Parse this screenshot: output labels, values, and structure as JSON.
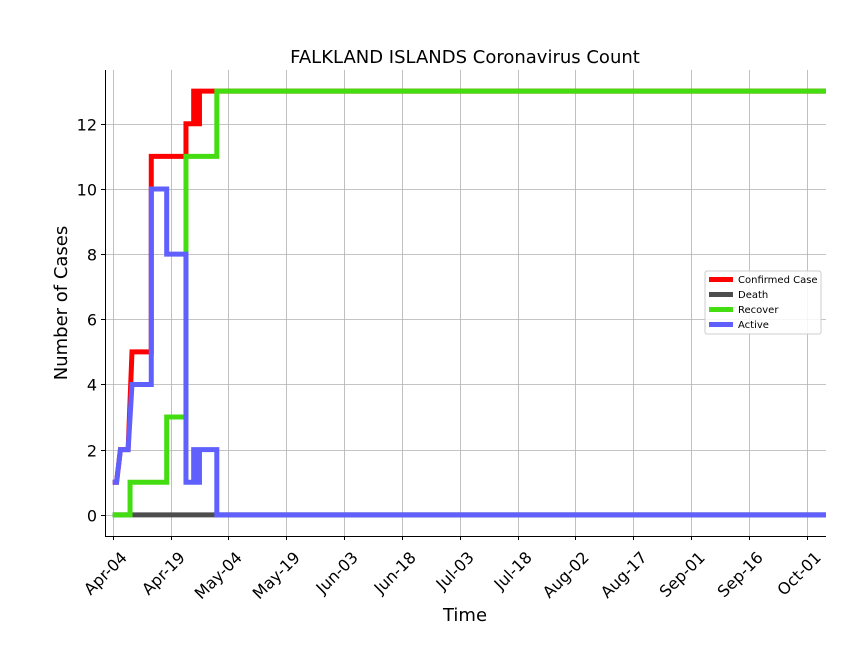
{
  "chart_data": {
    "type": "line",
    "title": "FALKLAND ISLANDS Coronavirus Count",
    "xlabel": "Time",
    "ylabel": "Number of Cases",
    "x_start": "2020-04-04",
    "x_end": "2020-10-04",
    "xlim": [
      -2,
      185
    ],
    "ylim": [
      -0.65,
      13.65
    ],
    "yticks": [
      0,
      2,
      4,
      6,
      8,
      10,
      12
    ],
    "xtick_labels": [
      "Apr-04",
      "Apr-19",
      "May-04",
      "May-19",
      "Jun-03",
      "Jun-18",
      "Jul-03",
      "Jul-18",
      "Aug-02",
      "Aug-17",
      "Sep-01",
      "Sep-16",
      "Oct-01"
    ],
    "xtick_offsets": [
      0,
      15,
      30,
      45,
      60,
      75,
      90,
      105,
      120,
      135,
      150,
      165,
      180
    ],
    "grid": true,
    "legend_position": "center-right",
    "step": "post",
    "series": [
      {
        "name": "Confirmed Case",
        "color": "#ff0000",
        "points": [
          [
            0,
            1
          ],
          [
            1,
            1
          ],
          [
            2,
            2
          ],
          [
            4,
            2
          ],
          [
            5,
            5
          ],
          [
            10,
            5
          ],
          [
            10,
            11
          ],
          [
            19,
            11
          ],
          [
            19,
            12
          ],
          [
            21,
            12
          ],
          [
            21,
            13
          ],
          [
            22,
            13
          ],
          [
            22,
            12
          ],
          [
            22.5,
            12
          ],
          [
            22.5,
            13
          ],
          [
            185,
            13
          ]
        ]
      },
      {
        "name": "Death",
        "color": "#4d4d4d",
        "points": [
          [
            0,
            0
          ],
          [
            185,
            0
          ]
        ]
      },
      {
        "name": "Recover",
        "color": "#44dd11",
        "points": [
          [
            0,
            0
          ],
          [
            4.5,
            0
          ],
          [
            4.5,
            1
          ],
          [
            14,
            1
          ],
          [
            14,
            3
          ],
          [
            19,
            3
          ],
          [
            19,
            11
          ],
          [
            27,
            11
          ],
          [
            27,
            13
          ],
          [
            185,
            13
          ]
        ]
      },
      {
        "name": "Active",
        "color": "#6060ff",
        "points": [
          [
            0,
            1
          ],
          [
            1,
            1
          ],
          [
            2,
            2
          ],
          [
            4,
            2
          ],
          [
            5,
            4
          ],
          [
            10,
            4
          ],
          [
            10,
            10
          ],
          [
            14,
            10
          ],
          [
            14,
            8
          ],
          [
            19,
            8
          ],
          [
            19,
            1
          ],
          [
            21,
            1
          ],
          [
            21,
            2
          ],
          [
            22,
            2
          ],
          [
            22,
            1
          ],
          [
            22.5,
            1
          ],
          [
            22.5,
            2
          ],
          [
            27,
            2
          ],
          [
            27,
            0
          ],
          [
            185,
            0
          ]
        ]
      }
    ]
  }
}
